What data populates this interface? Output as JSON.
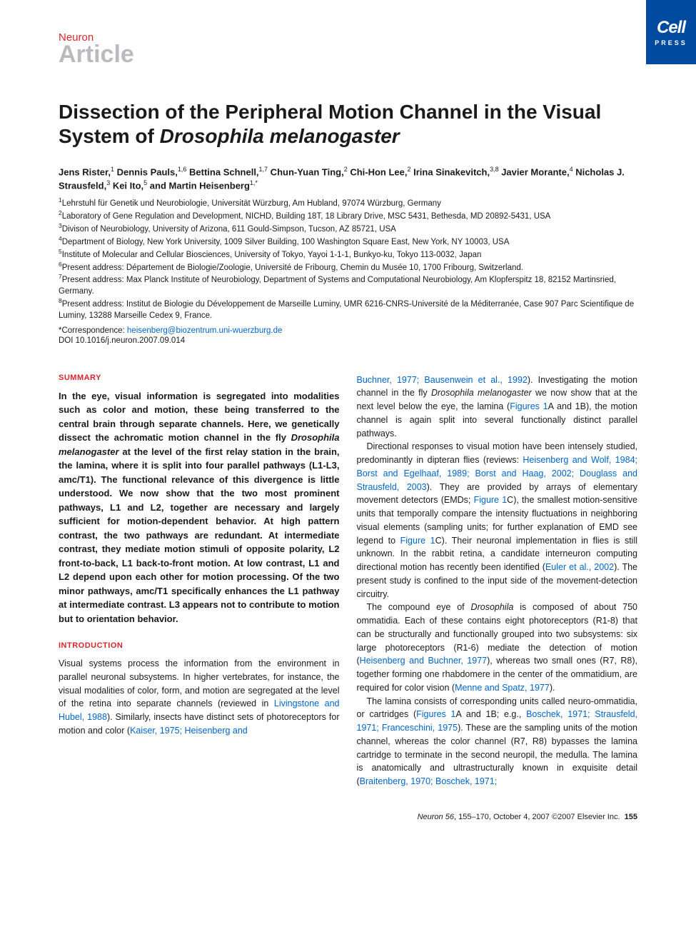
{
  "logo": {
    "brand": "Cell",
    "sub": "PRESS"
  },
  "journal": "Neuron",
  "articleType": "Article",
  "title_a": "Dissection of the Peripheral Motion Channel in the Visual System of ",
  "title_species": "Drosophila melanogaster",
  "authors_html": "Jens Rister,<sup>1</sup> Dennis Pauls,<sup>1,6</sup> Bettina Schnell,<sup>1,7</sup> Chun-Yuan Ting,<sup>2</sup> Chi-Hon Lee,<sup>2</sup> Irina Sinakevitch,<sup>3,8</sup> Javier Morante,<sup>4</sup> Nicholas J. Strausfeld,<sup>3</sup> Kei Ito,<sup>5</sup> and Martin Heisenberg<sup>1,*</sup>",
  "affiliations": [
    "<sup>1</sup>Lehrstuhl für Genetik und Neurobiologie, Universität Würzburg, Am Hubland, 97074 Würzburg, Germany",
    "<sup>2</sup>Laboratory of Gene Regulation and Development, NICHD, Building 18T, 18 Library Drive, MSC 5431, Bethesda, MD 20892-5431, USA",
    "<sup>3</sup>Divison of Neurobiology, University of Arizona, 611 Gould-Simpson, Tucson, AZ 85721, USA",
    "<sup>4</sup>Department of Biology, New York University, 1009 Silver Building, 100 Washington Square East, New York, NY 10003, USA",
    "<sup>5</sup>Institute of Molecular and Cellular Biosciences, University of Tokyo, Yayoi 1-1-1, Bunkyo-ku, Tokyo 113-0032, Japan",
    "<sup>6</sup>Present address: Département de Biologie/Zoologie, Université de Fribourg, Chemin du Musée 10, 1700 Fribourg, Switzerland.",
    "<sup>7</sup>Present address: Max Planck Institute of Neurobiology, Department of Systems and Computational Neurobiology, Am Klopferspitz 18, 82152 Martinsried, Germany.",
    "<sup>8</sup>Present address: Institut de Biologie du Développement de Marseille Luminy, UMR 6216-CNRS-Université de la Méditerranée, Case 907 Parc Scientifique de Luminy, 13288 Marseille Cedex 9, France."
  ],
  "correspondence_label": "*Correspondence: ",
  "correspondence_email": "heisenberg@biozentrum.uni-wuerzburg.de",
  "doi": "DOI 10.1016/j.neuron.2007.09.014",
  "summary_heading": "SUMMARY",
  "summary_html": "In the eye, visual information is segregated into modalities such as color and motion, these being transferred to the central brain through separate channels. Here, we genetically dissect the achromatic motion channel in the fly <span class=\"species\">Drosophila melanogaster</span> at the level of the first relay station in the brain, the lamina, where it is split into four parallel pathways (L1-L3, amc/T1). The functional relevance of this divergence is little understood. We now show that the two most prominent pathways, L1 and L2, together are necessary and largely sufficient for motion-dependent behavior. At high pattern contrast, the two pathways are redundant. At intermediate contrast, they mediate motion stimuli of opposite polarity, L2 front-to-back, L1 back-to-front motion. At low contrast, L1 and L2 depend upon each other for motion processing. Of the two minor pathways, amc/T1 specifically enhances the L1 pathway at intermediate contrast. L3 appears not to contribute to motion but to orientation behavior.",
  "intro_heading": "INTRODUCTION",
  "intro_left_html": "Visual systems process the information from the environment in parallel neuronal subsystems. In higher vertebrates, for instance, the visual modalities of color, form, and motion are segregated at the level of the retina into separate channels (reviewed in <span class=\"ref\">Livingstone and Hubel, 1988</span>). Similarly, insects have distinct sets of photoreceptors for motion and color (<span class=\"ref\">Kaiser, 1975; Heisenberg and</span>",
  "col2_paragraphs": [
    "<span class=\"ref\">Buchner, 1977; Bausenwein et al., 1992</span>). Investigating the motion channel in the fly <span class=\"species\">Drosophila melanogaster</span> we now show that at the next level below the eye, the lamina (<span class=\"ref\">Figures 1</span>A and 1B), the motion channel is again split into several functionally distinct parallel pathways.",
    "Directional responses to visual motion have been intensely studied, predominantly in dipteran flies (reviews: <span class=\"ref\">Heisenberg and Wolf, 1984; Borst and Egelhaaf, 1989; Borst and Haag, 2002; Douglass and Strausfeld, 2003</span>). They are provided by arrays of elementary movement detectors (EMDs; <span class=\"ref\">Figure 1</span>C), the smallest motion-sensitive units that temporally compare the intensity fluctuations in neighboring visual elements (sampling units; for further explanation of EMD see legend to <span class=\"ref\">Figure 1</span>C). Their neuronal implementation in flies is still unknown. In the rabbit retina, a candidate interneuron computing directional motion has recently been identified (<span class=\"ref\">Euler et al., 2002</span>). The present study is confined to the input side of the movement-detection circuitry.",
    "The compound eye of <span class=\"species\">Drosophila</span> is composed of about 750 ommatidia. Each of these contains eight photoreceptors (R1-8) that can be structurally and functionally grouped into two subsystems: six large photoreceptors (R1-6) mediate the detection of motion (<span class=\"ref\">Heisenberg and Buchner, 1977</span>), whereas two small ones (R7, R8), together forming one rhabdomere in the center of the ommatidium, are required for color vision (<span class=\"ref\">Menne and Spatz, 1977</span>).",
    "The lamina consists of corresponding units called neuro-ommatidia, or cartridges (<span class=\"ref\">Figures 1</span>A and 1B; e.g., <span class=\"ref\">Boschek, 1971; Strausfeld, 1971; Franceschini, 1975</span>). These are the sampling units of the motion channel, whereas the color channel (R7, R8) bypasses the lamina cartridge to terminate in the second neuropil, the medulla. The lamina is anatomically and ultrastructurally known in exquisite detail (<span class=\"ref\">Braitenberg, 1970; Boschek, 1971;</span>"
  ],
  "footer": {
    "citation_pre": "Neuron ",
    "citation_vol": "56",
    "citation_rest": ", 155–170, October 4, 2007 ©2007 Elsevier Inc.",
    "page": "155"
  },
  "colors": {
    "brandBlue": "#004b9f",
    "accentRed": "#d9262e",
    "linkBlue": "#0066cc",
    "grayLabel": "#b9bbbe",
    "text": "#1a1a1a"
  },
  "typography": {
    "title_pt": 28,
    "body_pt": 12.5,
    "summary_pt": 13,
    "heading_pt": 11,
    "affil_pt": 11.5
  }
}
